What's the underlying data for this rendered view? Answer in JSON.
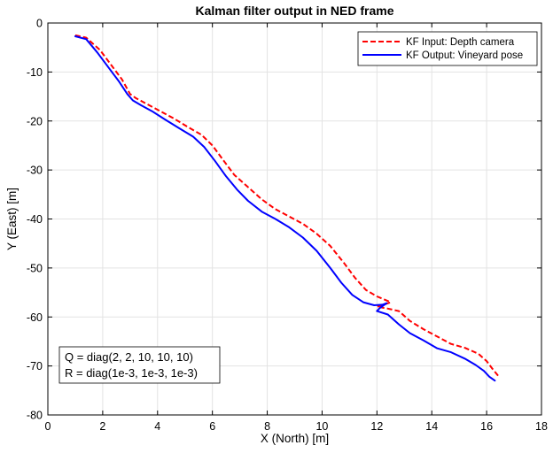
{
  "chart_data": {
    "type": "line",
    "title": "Kalman filter output in NED frame",
    "xlabel": "X (North) [m]",
    "ylabel": "Y (East) [m]",
    "xlim": [
      0,
      18
    ],
    "ylim": [
      -80,
      0
    ],
    "xticks": [
      0,
      2,
      4,
      6,
      8,
      10,
      12,
      14,
      16,
      18
    ],
    "yticks": [
      0,
      -10,
      -20,
      -30,
      -40,
      -50,
      -60,
      -70,
      -80
    ],
    "grid": true,
    "legend_position": "top-right",
    "series": [
      {
        "name": "KF Input: Depth camera",
        "color": "#ff0000",
        "style": "dashed",
        "x": [
          1.0,
          1.4,
          1.9,
          2.3,
          2.7,
          3.0,
          3.2,
          3.6,
          4.1,
          4.6,
          5.1,
          5.6,
          6.0,
          6.4,
          6.8,
          7.3,
          7.8,
          8.3,
          8.8,
          9.3,
          9.8,
          10.3,
          10.8,
          11.2,
          11.6,
          12.0,
          12.3,
          12.5,
          12.2,
          12.0,
          12.4,
          12.8,
          13.2,
          13.7,
          14.2,
          14.7,
          15.2,
          15.7,
          16.0,
          16.2,
          16.45
        ],
        "y": [
          -2.5,
          -3.0,
          -5.5,
          -8.5,
          -11.5,
          -14.5,
          -15.3,
          -16.5,
          -18.0,
          -19.5,
          -21.2,
          -22.8,
          -25.0,
          -28.0,
          -31.0,
          -33.5,
          -36.0,
          -38.0,
          -39.5,
          -41.0,
          -43.0,
          -45.5,
          -49.0,
          -52.0,
          -54.5,
          -55.8,
          -56.5,
          -57.0,
          -57.6,
          -57.9,
          -58.3,
          -58.8,
          -60.8,
          -62.5,
          -64.0,
          -65.5,
          -66.3,
          -67.5,
          -69.0,
          -70.5,
          -72.2
        ]
      },
      {
        "name": "KF Output: Vineyard pose",
        "color": "#0000ff",
        "style": "solid",
        "x": [
          1.0,
          1.4,
          1.8,
          2.2,
          2.6,
          2.9,
          3.1,
          3.4,
          3.8,
          4.3,
          4.8,
          5.3,
          5.7,
          6.1,
          6.5,
          6.9,
          7.3,
          7.8,
          8.3,
          8.8,
          9.3,
          9.8,
          10.3,
          10.7,
          11.1,
          11.5,
          11.9,
          12.2,
          12.35,
          12.1,
          12.0,
          12.4,
          12.8,
          13.2,
          13.7,
          14.2,
          14.7,
          15.2,
          15.6,
          15.9,
          16.1,
          16.3
        ],
        "y": [
          -2.7,
          -3.3,
          -6.0,
          -9.0,
          -12.0,
          -14.5,
          -15.8,
          -16.8,
          -18.0,
          -19.8,
          -21.5,
          -23.2,
          -25.3,
          -28.2,
          -31.3,
          -34.0,
          -36.3,
          -38.5,
          -40.0,
          -41.7,
          -43.8,
          -46.5,
          -50.0,
          -53.0,
          -55.5,
          -57.0,
          -57.6,
          -57.5,
          -57.2,
          -58.2,
          -58.8,
          -59.5,
          -61.5,
          -63.3,
          -64.8,
          -66.4,
          -67.2,
          -68.5,
          -69.8,
          -71.0,
          -72.2,
          -73.0
        ]
      }
    ],
    "annotation": {
      "lines": [
        "Q = diag(2, 2, 10, 10, 10)",
        "R = diag(1e-3, 1e-3, 1e-3)"
      ],
      "position": "bottom-left"
    }
  }
}
